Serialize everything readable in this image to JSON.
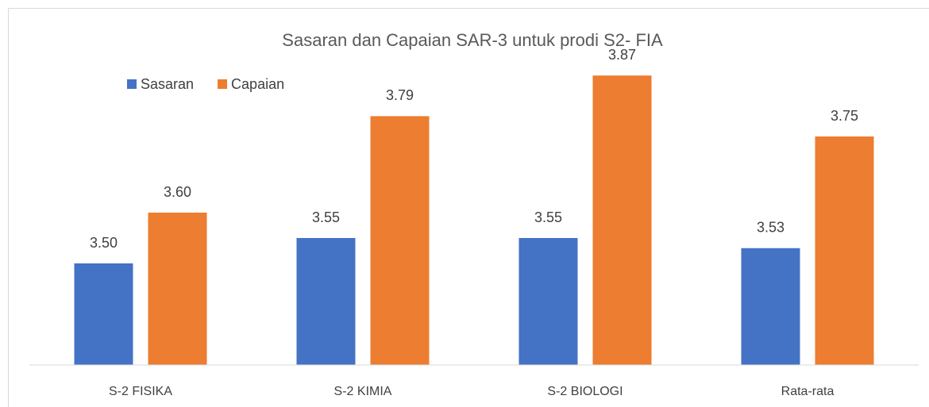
{
  "chart_data": {
    "type": "bar",
    "title": "Sasaran dan Capaian SAR-3 untuk prodi S2- FIA",
    "categories": [
      "S-2 FISIKA",
      "S-2 KIMIA",
      "S-2 BIOLOGI",
      "Rata-rata"
    ],
    "series": [
      {
        "name": "Sasaran",
        "color": "#4472c4",
        "values": [
          3.5,
          3.55,
          3.55,
          3.53
        ],
        "value_labels": [
          "3.50",
          "3.55",
          "3.55",
          "3.53"
        ]
      },
      {
        "name": "Capaian",
        "color": "#ed7d31",
        "values": [
          3.6,
          3.79,
          3.87,
          3.75
        ],
        "value_labels": [
          "3.60",
          "3.79",
          "3.87",
          "3.75"
        ]
      }
    ],
    "ylim": [
      3.3,
      3.9
    ]
  }
}
